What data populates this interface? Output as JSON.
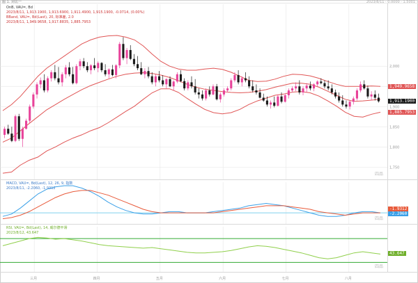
{
  "header": {
    "window_title": "图 1. 对比一",
    "top_right_text": "2023/8/11 · 0.0000 · 1.5001",
    "ticker_line": "OnB, VAU=, Bd",
    "ohlc_line": "2023/8/11, 1,913.1900, 1,913.6900, 1,911.4900, 1,915.1900, -0.0714, (0.00%)",
    "bbands_name": "BBand, VAU=, Bd(Last), 20, 标准差, 2.0",
    "bbands_values": "2023/8/11, 1,949.9658, 1,917.8835, 1,885.7953"
  },
  "panels": {
    "macd": {
      "title": "MACD, VAU=, Bd(Last), 12, 26, 9, 指数",
      "values_line": "2023/8/11, -2.2060, -1.9312",
      "watermark": "四品"
    },
    "rsi": {
      "title": "RSI, VAU=, Bd(Last), 14, 威尔德平滑",
      "values_line": "2023/8/12, 43.647",
      "watermark": "四品"
    },
    "price_watermark": "四品"
  },
  "price_labels": {
    "upper_band": "1,949.9658",
    "last": "1,913.1900",
    "lower_band": "1,885.7953",
    "macd_a": "-1.9312",
    "macd_b": "-2.2060",
    "rsi_last": "43.647"
  },
  "colors": {
    "up": "#e8439a",
    "down": "#1a1a1a",
    "band": "#e05555",
    "macd_line": "#3aa0e8",
    "signal_line": "#e85a3a",
    "rsi": "#8fcf4a",
    "hline": "#7fd1ee",
    "rsi_hline": "#33aa33",
    "grid": "#e6e6e6",
    "axis_text": "#9a9a9a"
  },
  "chart_data": [
    {
      "type": "candlestick",
      "title": "",
      "y_ticks": [
        "2,000",
        "1,950",
        "1,900",
        "1,850",
        "1,800",
        "1,750"
      ],
      "ylim": [
        1730,
        2095
      ],
      "x_ticks": [
        "三月",
        "四月",
        "五月",
        "六月",
        "七月",
        "八月"
      ],
      "candles": [
        [
          1830,
          1850,
          1822,
          1845
        ],
        [
          1845,
          1855,
          1830,
          1833
        ],
        [
          1833,
          1850,
          1812,
          1815
        ],
        [
          1815,
          1880,
          1812,
          1876
        ],
        [
          1876,
          1882,
          1815,
          1820
        ],
        [
          1820,
          1850,
          1800,
          1845
        ],
        [
          1845,
          1870,
          1843,
          1865
        ],
        [
          1865,
          1905,
          1860,
          1900
        ],
        [
          1900,
          1935,
          1895,
          1930
        ],
        [
          1930,
          1960,
          1920,
          1955
        ],
        [
          1955,
          1972,
          1945,
          1965
        ],
        [
          1965,
          1980,
          1935,
          1940
        ],
        [
          1940,
          1975,
          1935,
          1970
        ],
        [
          1970,
          1990,
          1962,
          1985
        ],
        [
          1985,
          2003,
          1965,
          1970
        ],
        [
          1970,
          1998,
          1955,
          1960
        ],
        [
          1960,
          1985,
          1950,
          1980
        ],
        [
          1980,
          2003,
          1970,
          1997
        ],
        [
          1997,
          2010,
          1975,
          1980
        ],
        [
          1980,
          1998,
          1955,
          1958
        ],
        [
          1958,
          2005,
          1955,
          2000
        ],
        [
          2000,
          2018,
          1990,
          2012
        ],
        [
          2012,
          2020,
          1995,
          2000
        ],
        [
          2000,
          2010,
          1985,
          1990
        ],
        [
          1990,
          2005,
          1980,
          2002
        ],
        [
          2002,
          2020,
          1990,
          1995
        ],
        [
          1995,
          2012,
          1985,
          2008
        ],
        [
          2008,
          2010,
          1985,
          1990
        ],
        [
          1990,
          2005,
          1975,
          1980
        ],
        [
          1980,
          1995,
          1970,
          1992
        ],
        [
          1992,
          2003,
          1975,
          1978
        ],
        [
          1978,
          2005,
          1970,
          2002
        ],
        [
          2002,
          2060,
          1995,
          2055
        ],
        [
          2055,
          2072,
          2015,
          2020
        ],
        [
          2020,
          2045,
          2005,
          2040
        ],
        [
          2040,
          2052,
          2015,
          2018
        ],
        [
          2018,
          2030,
          2000,
          2005
        ],
        [
          2005,
          2025,
          1990,
          1995
        ],
        [
          1995,
          2010,
          1978,
          1980
        ],
        [
          1980,
          1995,
          1970,
          1988
        ],
        [
          1988,
          1998,
          1970,
          1975
        ],
        [
          1975,
          1985,
          1955,
          1960
        ],
        [
          1960,
          1980,
          1950,
          1975
        ],
        [
          1975,
          1988,
          1960,
          1965
        ],
        [
          1965,
          1978,
          1950,
          1955
        ],
        [
          1955,
          1970,
          1945,
          1968
        ],
        [
          1968,
          1975,
          1948,
          1950
        ],
        [
          1950,
          1965,
          1940,
          1962
        ],
        [
          1962,
          1985,
          1958,
          1980
        ],
        [
          1980,
          1990,
          1960,
          1963
        ],
        [
          1963,
          1970,
          1940,
          1945
        ],
        [
          1945,
          1965,
          1940,
          1960
        ],
        [
          1960,
          1975,
          1945,
          1950
        ],
        [
          1950,
          1968,
          1930,
          1935
        ],
        [
          1935,
          1945,
          1920,
          1930
        ],
        [
          1930,
          1940,
          1915,
          1920
        ],
        [
          1920,
          1945,
          1915,
          1940
        ],
        [
          1940,
          1950,
          1925,
          1930
        ],
        [
          1930,
          1955,
          1928,
          1950
        ],
        [
          1950,
          1956,
          1915,
          1918
        ],
        [
          1918,
          1935,
          1910,
          1930
        ],
        [
          1930,
          1945,
          1925,
          1940
        ],
        [
          1940,
          1950,
          1935,
          1945
        ],
        [
          1945,
          1970,
          1940,
          1965
        ],
        [
          1965,
          1985,
          1960,
          1978
        ],
        [
          1978,
          1990,
          1955,
          1960
        ],
        [
          1960,
          1975,
          1950,
          1970
        ],
        [
          1970,
          1985,
          1960,
          1965
        ],
        [
          1965,
          1975,
          1945,
          1950
        ],
        [
          1950,
          1965,
          1935,
          1940
        ],
        [
          1940,
          1955,
          1930,
          1935
        ],
        [
          1935,
          1945,
          1920,
          1922
        ],
        [
          1922,
          1932,
          1912,
          1915
        ],
        [
          1915,
          1925,
          1900,
          1905
        ],
        [
          1905,
          1915,
          1895,
          1910
        ],
        [
          1910,
          1925,
          1898,
          1902
        ],
        [
          1902,
          1930,
          1900,
          1925
        ],
        [
          1925,
          1935,
          1908,
          1912
        ],
        [
          1912,
          1932,
          1910,
          1928
        ],
        [
          1928,
          1945,
          1920,
          1940
        ],
        [
          1940,
          1950,
          1935,
          1945
        ],
        [
          1945,
          1960,
          1938,
          1950
        ],
        [
          1950,
          1965,
          1930,
          1935
        ],
        [
          1935,
          1950,
          1928,
          1945
        ],
        [
          1945,
          1958,
          1935,
          1952
        ],
        [
          1952,
          1962,
          1940,
          1945
        ],
        [
          1945,
          1958,
          1938,
          1955
        ],
        [
          1955,
          1965,
          1950,
          1962
        ],
        [
          1962,
          1970,
          1955,
          1958
        ],
        [
          1958,
          1965,
          1945,
          1950
        ],
        [
          1950,
          1965,
          1940,
          1945
        ],
        [
          1945,
          1955,
          1930,
          1935
        ],
        [
          1935,
          1942,
          1920,
          1925
        ],
        [
          1925,
          1935,
          1910,
          1915
        ],
        [
          1915,
          1928,
          1900,
          1905
        ],
        [
          1905,
          1915,
          1895,
          1900
        ],
        [
          1900,
          1915,
          1893,
          1912
        ],
        [
          1912,
          1925,
          1905,
          1920
        ],
        [
          1920,
          1945,
          1915,
          1940
        ],
        [
          1940,
          1962,
          1935,
          1955
        ],
        [
          1955,
          1965,
          1942,
          1945
        ],
        [
          1945,
          1952,
          1920,
          1925
        ],
        [
          1925,
          1938,
          1915,
          1930
        ],
        [
          1930,
          1940,
          1915,
          1922
        ],
        [
          1922,
          1932,
          1910,
          1913
        ]
      ],
      "bb_upper": [
        1890,
        1905,
        1925,
        1950,
        1975,
        1995,
        2010,
        2025,
        2040,
        2055,
        2065,
        2072,
        2075,
        2076,
        2072,
        2065,
        2050,
        2030,
        2012,
        2000,
        1993,
        1990,
        1990,
        1993,
        1995,
        1992,
        1985,
        1975,
        1965,
        1962,
        1963,
        1968,
        1975,
        1980,
        1979,
        1976,
        1970,
        1962,
        1955,
        1950,
        1950,
        1950,
        1951,
        1950
      ],
      "bb_mid": [
        1812,
        1822,
        1840,
        1858,
        1875,
        1892,
        1905,
        1918,
        1930,
        1942,
        1952,
        1960,
        1968,
        1975,
        1980,
        1983,
        1984,
        1982,
        1978,
        1972,
        1964,
        1955,
        1948,
        1943,
        1940,
        1937,
        1935,
        1934,
        1935,
        1938,
        1942,
        1948,
        1953,
        1958,
        1958,
        1955,
        1948,
        1938,
        1928,
        1918,
        1913,
        1914,
        1916,
        1918
      ],
      "bb_lower": [
        1735,
        1738,
        1755,
        1767,
        1775,
        1790,
        1800,
        1812,
        1822,
        1830,
        1840,
        1848,
        1860,
        1874,
        1888,
        1901,
        1918,
        1934,
        1944,
        1944,
        1935,
        1920,
        1906,
        1893,
        1885,
        1882,
        1885,
        1893,
        1905,
        1914,
        1921,
        1928,
        1931,
        1936,
        1937,
        1934,
        1926,
        1914,
        1901,
        1886,
        1876,
        1874,
        1881,
        1886
      ]
    },
    {
      "type": "line",
      "title": "",
      "series": [
        {
          "name": "MACD",
          "values": [
            -5,
            -3,
            2,
            8,
            14,
            18,
            20,
            21,
            21,
            19,
            16,
            12,
            7,
            3,
            0,
            -2,
            -3,
            -3,
            -2,
            -1,
            -1,
            -2,
            -2,
            -2,
            -1,
            0,
            1,
            2,
            4,
            5,
            6,
            5,
            4,
            2,
            0,
            -2,
            -4,
            -5,
            -5,
            -4,
            -2,
            -1,
            -1,
            -2
          ]
        },
        {
          "name": "Signal",
          "values": [
            -7,
            -6,
            -4,
            -1,
            3,
            7,
            11,
            14,
            16,
            17,
            17,
            15,
            13,
            10,
            7,
            4,
            1,
            -1,
            -2,
            -2,
            -2,
            -2,
            -2,
            -2,
            -2,
            -1,
            0,
            1,
            2,
            3,
            4,
            4,
            4,
            3,
            2,
            1,
            -1,
            -2,
            -3,
            -4,
            -3,
            -2,
            -2,
            -2
          ]
        }
      ],
      "ylim": [
        -9,
        24
      ]
    },
    {
      "type": "line",
      "title": "",
      "series": [
        {
          "name": "RSI",
          "values": [
            58,
            62,
            66,
            70,
            72,
            71,
            69,
            70,
            68,
            66,
            63,
            60,
            58,
            57,
            56,
            55,
            54,
            55,
            53,
            51,
            49,
            47,
            46,
            46,
            47,
            48,
            50,
            53,
            56,
            58,
            57,
            55,
            52,
            49,
            46,
            42,
            38,
            36,
            38,
            42,
            46,
            48,
            46,
            44
          ]
        }
      ],
      "ylim": [
        20,
        90
      ]
    }
  ]
}
